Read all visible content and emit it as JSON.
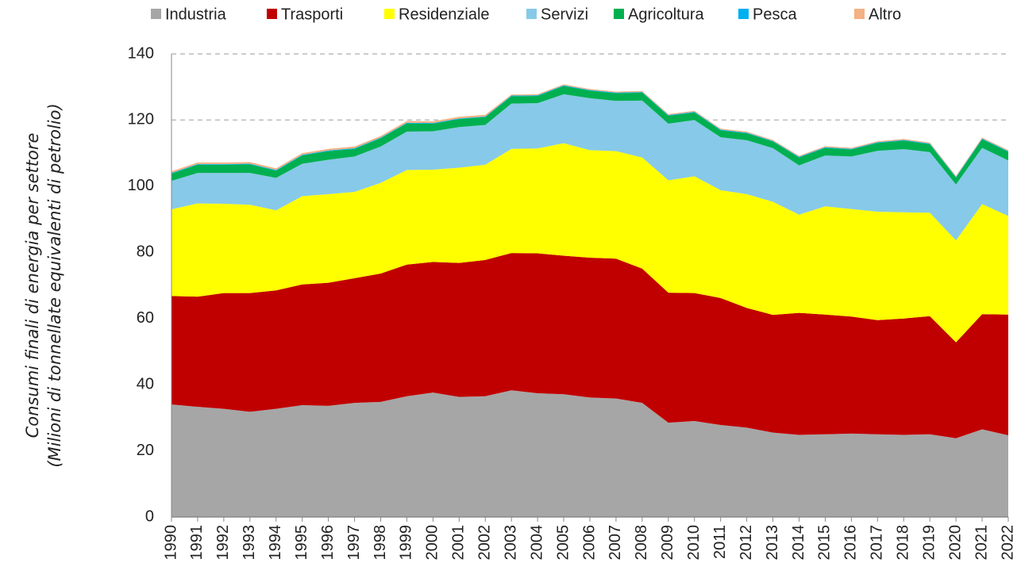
{
  "chart_data": {
    "type": "stacked_area",
    "ylabel": [
      "Consumi finali di energia per settore",
      "(Milioni di tonnellate equivalenti di petrolio)"
    ],
    "categories": [
      "1990",
      "1991",
      "1992",
      "1993",
      "1994",
      "1995",
      "1996",
      "1997",
      "1998",
      "1999",
      "2000",
      "2001",
      "2002",
      "2003",
      "2004",
      "2005",
      "2006",
      "2007",
      "2008",
      "2009",
      "2010",
      "2011",
      "2012",
      "2013",
      "2014",
      "2015",
      "2016",
      "2017",
      "2018",
      "2019",
      "2020",
      "2021",
      "2022"
    ],
    "ylim": [
      0,
      140
    ],
    "yticks": [
      0,
      20,
      40,
      60,
      80,
      100,
      120,
      140
    ],
    "grid": true,
    "series": [
      {
        "name": "Industria",
        "color": "#a6a6a6",
        "values": [
          34,
          33.3,
          32.7,
          31.8,
          32.7,
          33.8,
          33.6,
          34.5,
          34.8,
          36.5,
          37.6,
          36.3,
          36.5,
          38.3,
          37.4,
          37.1,
          36.1,
          35.8,
          34.5,
          28.5,
          29,
          27.8,
          27,
          25.5,
          24.8,
          25,
          25.2,
          25,
          24.8,
          25,
          23.8,
          26.5,
          24.7
        ]
      },
      {
        "name": "Trasporti",
        "color": "#c00000",
        "values": [
          32.8,
          33.3,
          35.0,
          35.9,
          35.8,
          36.5,
          37.2,
          37.7,
          38.8,
          39.8,
          39.5,
          40.5,
          41.2,
          41.5,
          42.3,
          41.9,
          42.3,
          42.3,
          40.6,
          39.3,
          38.7,
          38.4,
          36.2,
          35.6,
          36.9,
          36.2,
          35.4,
          34.5,
          35.2,
          35.7,
          29.0,
          34.8,
          36.5
        ]
      },
      {
        "name": "Residenziale",
        "color": "#ffff00",
        "values": [
          26.2,
          28.2,
          27.0,
          26.7,
          24.2,
          26.7,
          26.8,
          26.1,
          27.4,
          28.6,
          27.9,
          28.8,
          28.8,
          31.5,
          31.7,
          34.0,
          32.5,
          32.5,
          33.6,
          34.0,
          35.3,
          32.6,
          34.4,
          34.2,
          29.7,
          32.7,
          32.5,
          32.8,
          32.1,
          31.3,
          30.8,
          33.3,
          29.8
        ]
      },
      {
        "name": "Servizi",
        "color": "#87c9e8",
        "values": [
          8.6,
          9.2,
          9.3,
          9.6,
          9.8,
          9.8,
          10.4,
          10.7,
          11.0,
          11.6,
          11.6,
          12.3,
          12.0,
          13.7,
          13.7,
          14.8,
          15.7,
          15.2,
          17.2,
          17.1,
          17.0,
          16.0,
          16.3,
          16.2,
          14.9,
          15.4,
          15.9,
          18.4,
          19.1,
          18.3,
          16.9,
          17.0,
          16.8
        ]
      },
      {
        "name": "Agricoltura",
        "color": "#00b050",
        "values": [
          2.2,
          2.5,
          2.5,
          2.6,
          2.2,
          2.5,
          2.6,
          2.3,
          2.5,
          2.5,
          2.3,
          2.4,
          2.4,
          2.2,
          2.2,
          2.5,
          2.3,
          2.3,
          2.4,
          2.4,
          2.3,
          2.1,
          2.1,
          2.0,
          2.4,
          2.3,
          2.1,
          2.4,
          2.6,
          2.4,
          2.1,
          2.6,
          2.6
        ]
      },
      {
        "name": "Pesca",
        "color": "#00b0f0",
        "values": [
          0.2,
          0.2,
          0.2,
          0.2,
          0.2,
          0.2,
          0.2,
          0.2,
          0.2,
          0.2,
          0.2,
          0.2,
          0.2,
          0.2,
          0.2,
          0.2,
          0.2,
          0.2,
          0.2,
          0.2,
          0.2,
          0.2,
          0.2,
          0.2,
          0.2,
          0.2,
          0.2,
          0.2,
          0.2,
          0.2,
          0.2,
          0.2,
          0.2
        ]
      },
      {
        "name": "Altro",
        "color": "#f4b183",
        "values": [
          0.5,
          0.5,
          0.5,
          0.5,
          0.5,
          0.5,
          0.5,
          0.5,
          0.5,
          0.5,
          0.5,
          0.5,
          0.5,
          0.3,
          0.3,
          0.3,
          0.3,
          0.3,
          0.3,
          0.3,
          0.3,
          0.3,
          0.3,
          0.3,
          0.3,
          0.3,
          0.3,
          0.3,
          0.3,
          0.3,
          0.3,
          0.3,
          0.3
        ]
      }
    ]
  }
}
